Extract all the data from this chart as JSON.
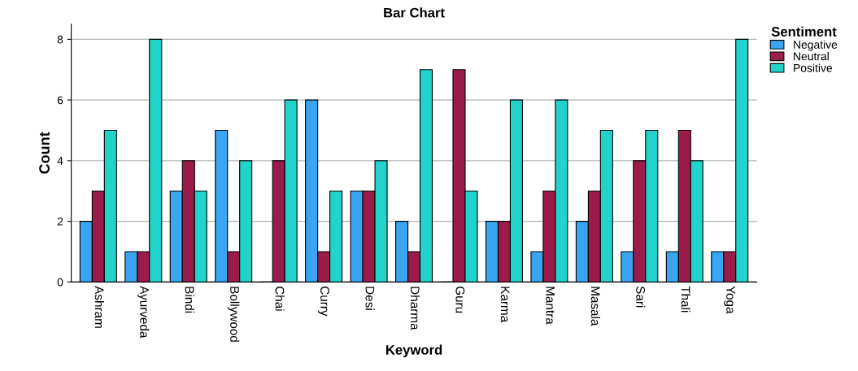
{
  "chart_data": {
    "type": "bar",
    "title": "Bar Chart",
    "xlabel": "Keyword",
    "ylabel": "Count",
    "legend_title": "Sentiment",
    "categories": [
      "Ashram",
      "Ayurveda",
      "Bindi",
      "Bollywood",
      "Chai",
      "Curry",
      "Desi",
      "Dharma",
      "Guru",
      "Karma",
      "Mantra",
      "Masala",
      "Sari",
      "Thali",
      "Yoga"
    ],
    "series": [
      {
        "name": "Negative",
        "color": "#3aa6f2",
        "values": [
          2,
          1,
          3,
          5,
          0,
          6,
          3,
          2,
          0,
          2,
          1,
          2,
          1,
          1,
          1
        ]
      },
      {
        "name": "Neutral",
        "color": "#9b1b4b",
        "values": [
          3,
          1,
          4,
          1,
          4,
          1,
          3,
          1,
          7,
          2,
          3,
          3,
          4,
          5,
          1
        ]
      },
      {
        "name": "Positive",
        "color": "#22d3cc",
        "values": [
          5,
          8,
          3,
          4,
          6,
          3,
          4,
          7,
          3,
          6,
          6,
          5,
          5,
          4,
          8
        ]
      }
    ],
    "ylim": [
      0,
      8.5
    ],
    "yticks": [
      0,
      2,
      4,
      6,
      8
    ],
    "grid": "y",
    "legend": "top right"
  }
}
